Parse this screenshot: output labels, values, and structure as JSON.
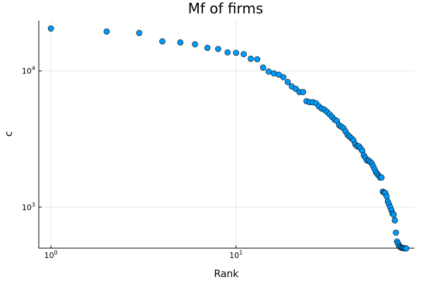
{
  "colors": {
    "marker": "#009AFA",
    "marker_stroke": "#000000",
    "grid": "#E6E6E6",
    "axis": "#000000"
  },
  "chart_data": {
    "type": "scatter",
    "title": "Mf of firms",
    "xlabel": "Rank",
    "ylabel": "c",
    "x_scale": "log10",
    "y_scale": "log10",
    "grid": true,
    "legend": "none",
    "xlim": [
      0.86,
      92
    ],
    "ylim": [
      500,
      23500
    ],
    "x_ticks": [
      {
        "value": 1,
        "base": "10",
        "exp": "0"
      },
      {
        "value": 10,
        "base": "10",
        "exp": "1"
      }
    ],
    "y_ticks": [
      {
        "value": 1000,
        "base": "10",
        "exp": "3"
      },
      {
        "value": 10000,
        "base": "10",
        "exp": "4"
      }
    ],
    "series": [
      {
        "x": [
          1,
          2,
          3,
          4,
          5,
          6,
          7,
          8,
          9,
          10,
          11,
          12,
          13,
          14,
          15,
          16,
          17,
          18,
          19,
          20,
          21,
          22,
          23,
          24,
          25,
          26,
          27,
          28,
          29,
          30,
          31,
          32,
          33,
          34,
          35,
          36,
          37,
          38,
          39,
          40,
          41,
          42,
          43,
          44,
          45,
          46,
          47,
          48,
          49,
          50,
          51,
          52,
          53,
          54,
          55,
          56,
          57,
          58,
          59,
          60,
          61,
          62,
          63,
          64,
          65,
          66,
          67,
          68,
          69,
          70,
          71,
          72,
          73,
          74,
          75,
          76,
          77,
          78,
          79,
          80,
          81,
          82,
          83
        ],
        "y": [
          20500,
          19500,
          19000,
          16500,
          16200,
          15700,
          14800,
          14500,
          13700,
          13600,
          13300,
          12300,
          12200,
          10600,
          9900,
          9600,
          9400,
          9000,
          8300,
          7700,
          7400,
          7000,
          7000,
          6000,
          5900,
          5900,
          5800,
          5500,
          5300,
          5200,
          5000,
          4800,
          4600,
          4400,
          4300,
          4000,
          3900,
          3800,
          3600,
          3400,
          3300,
          3200,
          3100,
          2900,
          2800,
          2800,
          2700,
          2600,
          2400,
          2300,
          2200,
          2200,
          2150,
          2100,
          2000,
          1900,
          1800,
          1750,
          1700,
          1650,
          1650,
          1300,
          1280,
          1270,
          1200,
          1100,
          1050,
          1000,
          950,
          900,
          880,
          800,
          650,
          560,
          540,
          520,
          510,
          505,
          502,
          501,
          500,
          499,
          498
        ]
      }
    ]
  }
}
